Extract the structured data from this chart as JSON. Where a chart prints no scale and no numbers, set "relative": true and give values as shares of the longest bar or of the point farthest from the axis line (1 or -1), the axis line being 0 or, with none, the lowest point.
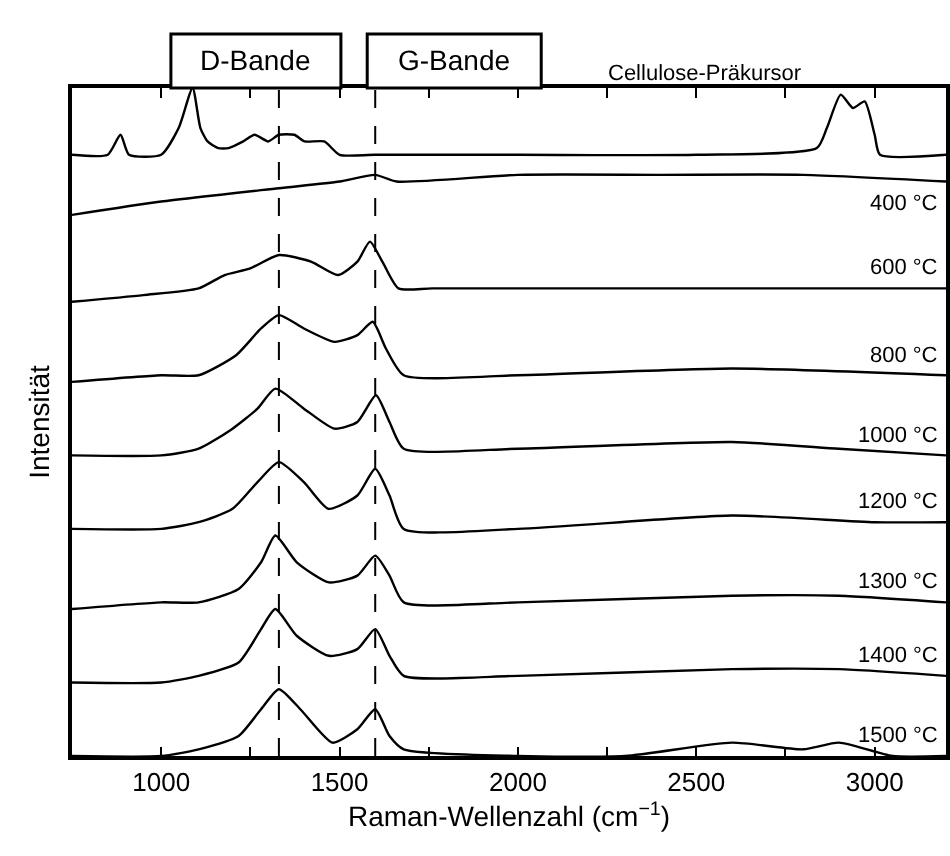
{
  "chart_data": {
    "type": "line",
    "relative": true,
    "xlabel": "Raman-Wellenzahl (cm$^{−1}$)",
    "ylabel": "Intensität",
    "xlim": [
      750,
      3200
    ],
    "xticks": [
      1000,
      {
        "value": 1250,
        "label": null
      },
      1500,
      {
        "value": 1750,
        "label": null
      },
      2000,
      {
        "value": 2250,
        "label": null
      },
      2500,
      {
        "value": 2750,
        "label": null
      },
      3000
    ],
    "legend": false,
    "marker": "none",
    "line_style": "solid",
    "ref_lines": [
      {
        "axis": "x",
        "value": 1330,
        "label": "D-Bande",
        "color": "#000000",
        "line_style": "dashed"
      },
      {
        "axis": "x",
        "value": 1600,
        "label": "G-Bande",
        "color": "#000000",
        "line_style": "dashed"
      }
    ],
    "series": [
      {
        "name": "Cellulose-Präkursor",
        "color": "#000000",
        "x": [
          750,
          850,
          886,
          910,
          1000,
          1049,
          1088,
          1110,
          1130,
          1160,
          1189,
          1230,
          1262,
          1300,
          1330,
          1373,
          1402,
          1457,
          1500,
          1600,
          2000,
          2500,
          2838,
          2866,
          2905,
          2939,
          2972,
          3000,
          3015,
          3200
        ],
        "values": [
          0.9,
          0.9,
          0.93,
          0.9,
          0.9,
          0.94,
          1.0,
          0.94,
          0.92,
          0.91,
          0.91,
          0.92,
          0.93,
          0.92,
          0.93,
          0.93,
          0.92,
          0.92,
          0.9,
          0.9,
          0.9,
          0.9,
          0.91,
          0.94,
          0.99,
          0.97,
          0.98,
          0.93,
          0.9,
          0.9
        ]
      },
      {
        "name": "400 °C",
        "color": "#000000",
        "x": [
          750,
          1000,
          1330,
          1500,
          1600,
          1660,
          2000,
          2400,
          2800,
          3200
        ],
        "values": [
          0.81,
          0.83,
          0.85,
          0.86,
          0.87,
          0.86,
          0.87,
          0.87,
          0.87,
          0.86
        ]
      },
      {
        "name": "600 °C",
        "color": "#000000",
        "x": [
          750,
          950,
          1105,
          1178,
          1250,
          1330,
          1420,
          1496,
          1550,
          1585,
          1620,
          1665,
          1760,
          2200,
          2600,
          3200
        ],
        "values": [
          0.68,
          0.69,
          0.7,
          0.72,
          0.73,
          0.75,
          0.74,
          0.72,
          0.74,
          0.77,
          0.74,
          0.7,
          0.7,
          0.7,
          0.7,
          0.7
        ]
      },
      {
        "name": "800 °C",
        "color": "#000000",
        "x": [
          750,
          1000,
          1105,
          1210,
          1280,
          1330,
          1400,
          1486,
          1550,
          1593,
          1630,
          1680,
          2000,
          2600,
          3200
        ],
        "values": [
          0.56,
          0.57,
          0.57,
          0.6,
          0.64,
          0.66,
          0.64,
          0.62,
          0.63,
          0.65,
          0.61,
          0.57,
          0.57,
          0.58,
          0.57
        ]
      },
      {
        "name": "1000 °C",
        "color": "#000000",
        "x": [
          750,
          1000,
          1105,
          1200,
          1270,
          1320,
          1400,
          1486,
          1550,
          1602,
          1640,
          1680,
          2000,
          2600,
          2900,
          3200
        ],
        "values": [
          0.45,
          0.45,
          0.46,
          0.49,
          0.52,
          0.55,
          0.52,
          0.49,
          0.5,
          0.54,
          0.5,
          0.46,
          0.46,
          0.47,
          0.46,
          0.45
        ]
      },
      {
        "name": "1200 °C",
        "color": "#000000",
        "x": [
          750,
          1000,
          1105,
          1200,
          1270,
          1330,
          1400,
          1469,
          1550,
          1600,
          1640,
          1680,
          2000,
          2600,
          3000,
          3200
        ],
        "values": [
          0.34,
          0.34,
          0.35,
          0.37,
          0.41,
          0.44,
          0.41,
          0.37,
          0.39,
          0.43,
          0.39,
          0.34,
          0.34,
          0.36,
          0.35,
          0.35
        ]
      },
      {
        "name": "1300 °C",
        "color": "#000000",
        "x": [
          750,
          1000,
          1105,
          1217,
          1280,
          1320,
          1380,
          1470,
          1550,
          1600,
          1640,
          1680,
          2000,
          2600,
          2900,
          3200
        ],
        "values": [
          0.22,
          0.23,
          0.23,
          0.25,
          0.29,
          0.33,
          0.29,
          0.26,
          0.27,
          0.3,
          0.27,
          0.23,
          0.23,
          0.24,
          0.24,
          0.23
        ]
      },
      {
        "name": "1400 °C",
        "color": "#000000",
        "x": [
          750,
          1000,
          1105,
          1217,
          1280,
          1320,
          1380,
          1470,
          1550,
          1600,
          1640,
          1680,
          2000,
          2600,
          2900,
          3200
        ],
        "values": [
          0.11,
          0.11,
          0.12,
          0.14,
          0.19,
          0.22,
          0.18,
          0.15,
          0.16,
          0.19,
          0.15,
          0.12,
          0.12,
          0.13,
          0.13,
          0.12
        ]
      },
      {
        "name": "1500 °C",
        "color": "#000000",
        "x": [
          750,
          1000,
          1105,
          1217,
          1280,
          1330,
          1390,
          1480,
          1550,
          1600,
          1640,
          1680,
          2000,
          2300,
          2600,
          2800,
          2900,
          3050,
          3200
        ],
        "values": [
          0.0,
          0.0,
          0.01,
          0.03,
          0.07,
          0.1,
          0.07,
          0.02,
          0.04,
          0.07,
          0.03,
          0.01,
          0.0,
          0.0,
          0.02,
          0.01,
          0.02,
          0.0,
          0.0
        ]
      }
    ]
  }
}
